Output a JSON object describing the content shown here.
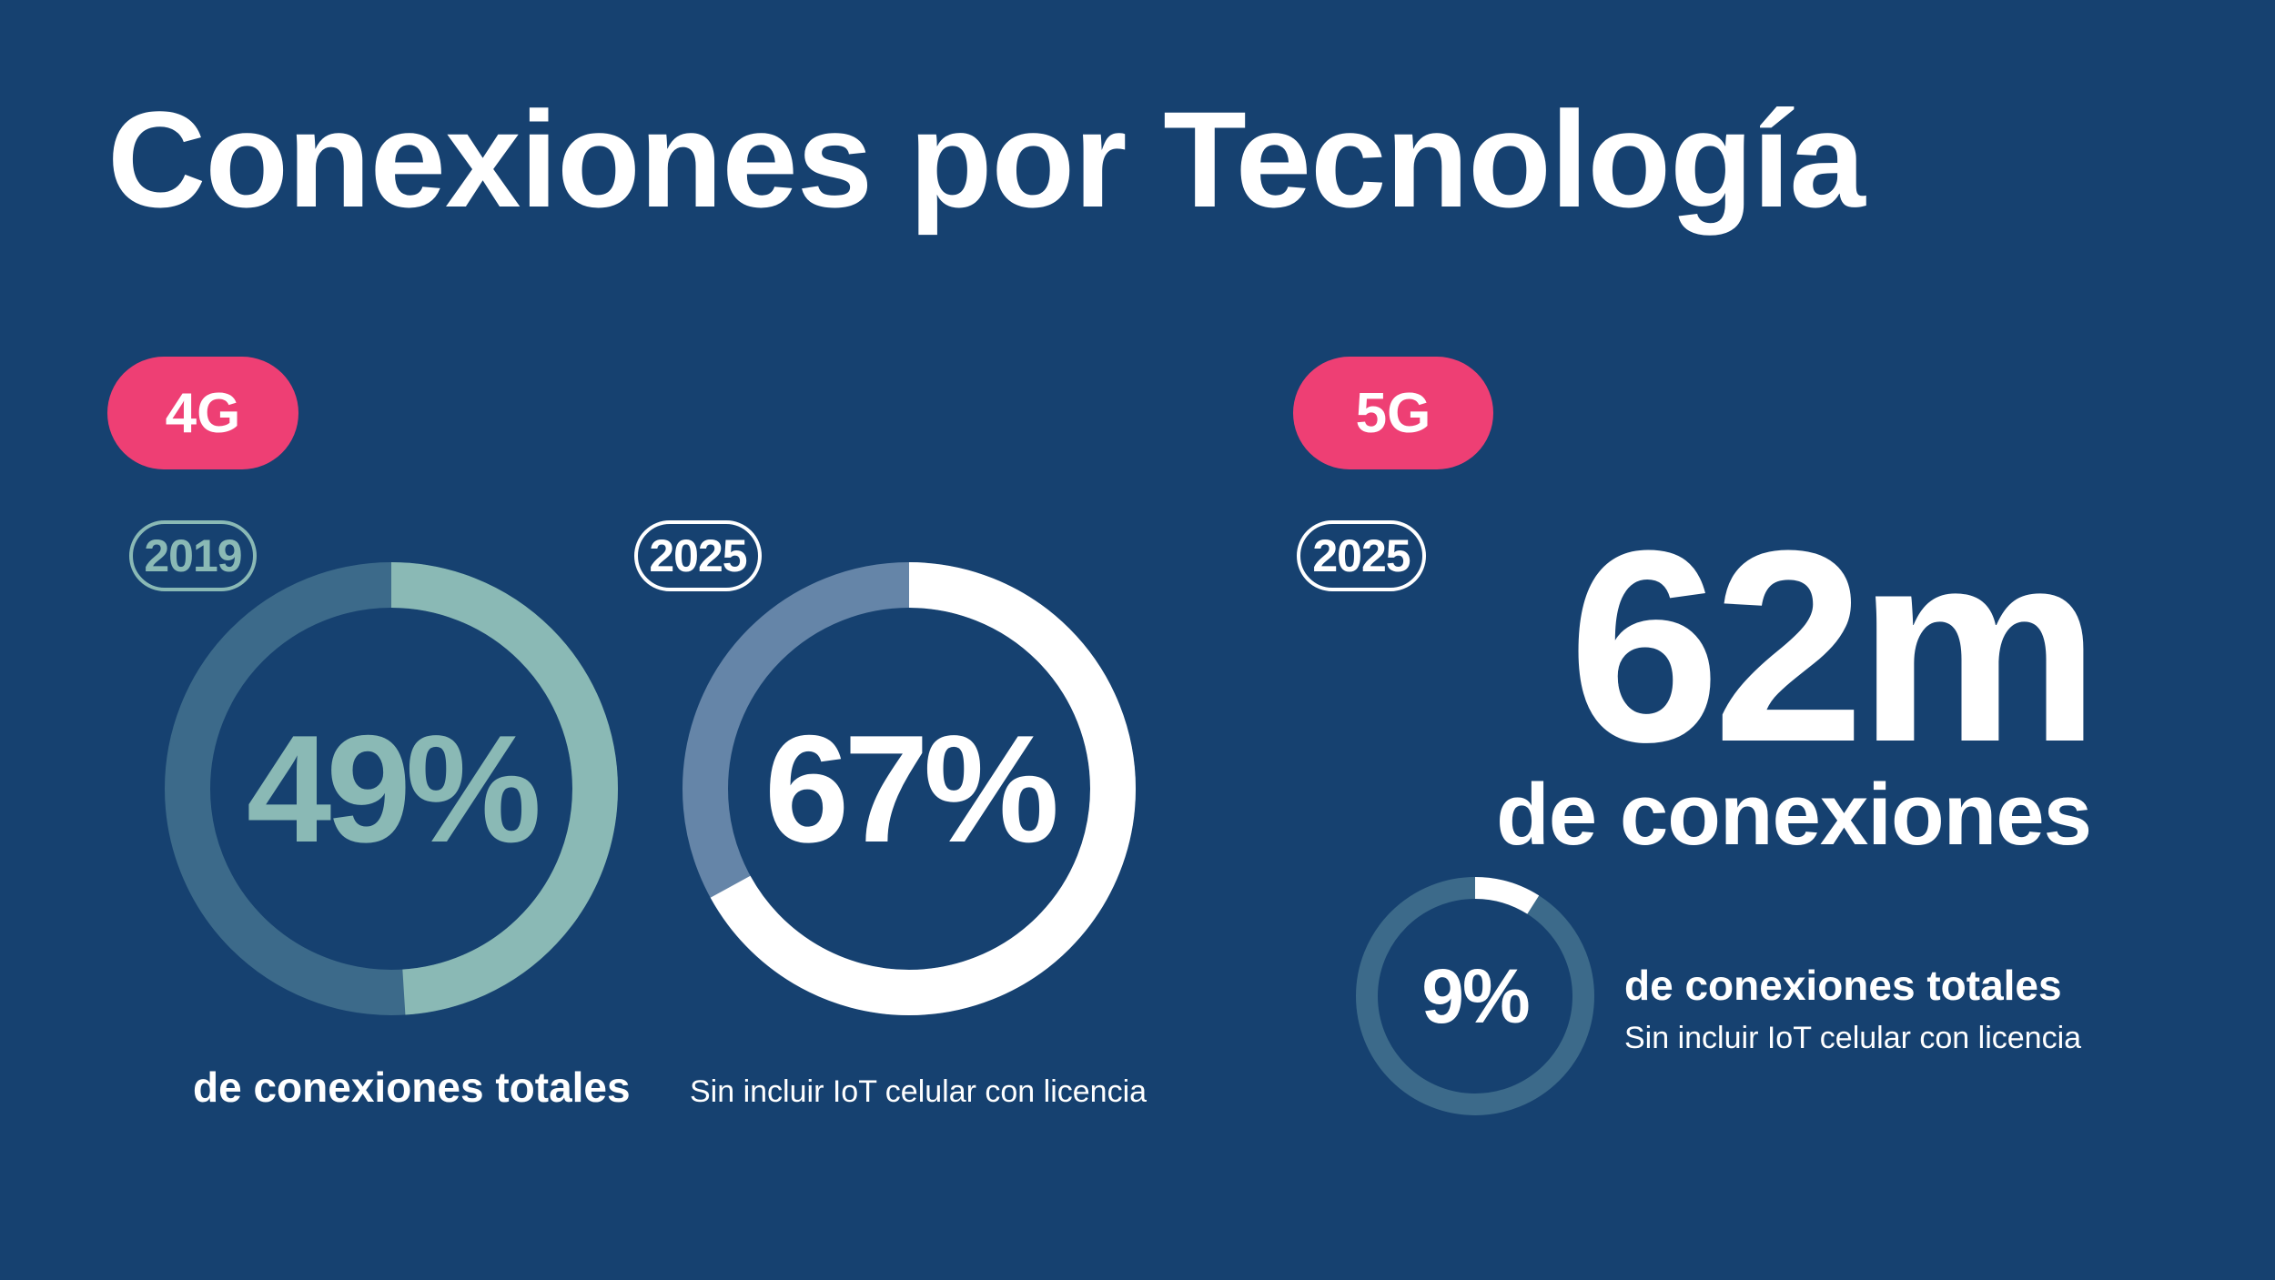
{
  "title": "Conexiones por Tecnología",
  "colors": {
    "background": "#164170",
    "accent_pill": "#ee3f74",
    "teal": "#8ab9b5",
    "teal_track": "#3c6a8a",
    "white": "#ffffff",
    "white_track": "#6585a8",
    "small_track": "#3c6a8a"
  },
  "sections": {
    "g4": {
      "label": "4G",
      "caption_bold": "de conexiones totales",
      "caption_light": "Sin incluir IoT celular con licencia"
    },
    "g5": {
      "label": "5G",
      "year": "2025",
      "big_value": "62m",
      "big_caption": "de conexiones",
      "caption_bold": "de conexiones totales",
      "caption_light": "Sin incluir IoT celular con licencia"
    }
  },
  "chart_data": [
    {
      "type": "pie",
      "series_group": "4G",
      "year": "2019",
      "value_label": "49%",
      "values": [
        49,
        51
      ]
    },
    {
      "type": "pie",
      "series_group": "4G",
      "year": "2025",
      "value_label": "67%",
      "values": [
        67,
        33
      ]
    },
    {
      "type": "pie",
      "series_group": "5G",
      "year": "2025",
      "value_label": "9%",
      "values": [
        9,
        91
      ]
    }
  ]
}
